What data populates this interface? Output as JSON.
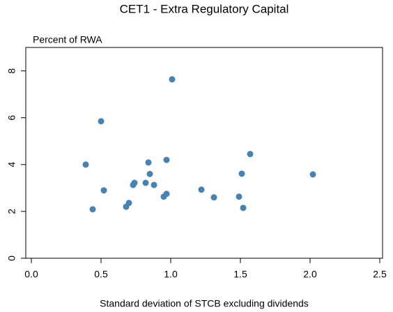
{
  "chart_data": {
    "type": "scatter",
    "title": "CET1 - Extra Regulatory Capital",
    "y_label": "Percent of RWA",
    "x_label": "Standard deviation of STCB excluding dividends",
    "x": [
      0.39,
      0.5,
      0.44,
      0.52,
      0.68,
      0.7,
      0.73,
      0.74,
      0.82,
      0.84,
      0.85,
      0.88,
      0.97,
      0.95,
      0.97,
      1.01,
      1.22,
      1.31,
      1.49,
      1.51,
      1.52,
      1.57,
      2.02
    ],
    "values": [
      4.0,
      5.85,
      2.09,
      2.9,
      2.2,
      2.36,
      3.13,
      3.22,
      3.22,
      4.09,
      3.6,
      3.13,
      4.2,
      2.63,
      2.75,
      7.64,
      2.93,
      2.6,
      2.63,
      3.61,
      2.15,
      4.45,
      3.58
    ],
    "color": "#4682b4",
    "xlim": [
      -0.04,
      2.52
    ],
    "ylim": [
      0,
      9
    ],
    "xticks": [
      {
        "value": 0,
        "label": "0.0"
      },
      {
        "value": 0.5,
        "label": "0.5"
      },
      {
        "value": 1,
        "label": "1.0"
      },
      {
        "value": 1.5,
        "label": "1.5"
      },
      {
        "value": 2,
        "label": "2.0"
      },
      {
        "value": 2.5,
        "label": "2.5"
      }
    ],
    "yticks": [
      0,
      2,
      4,
      6,
      8
    ]
  }
}
